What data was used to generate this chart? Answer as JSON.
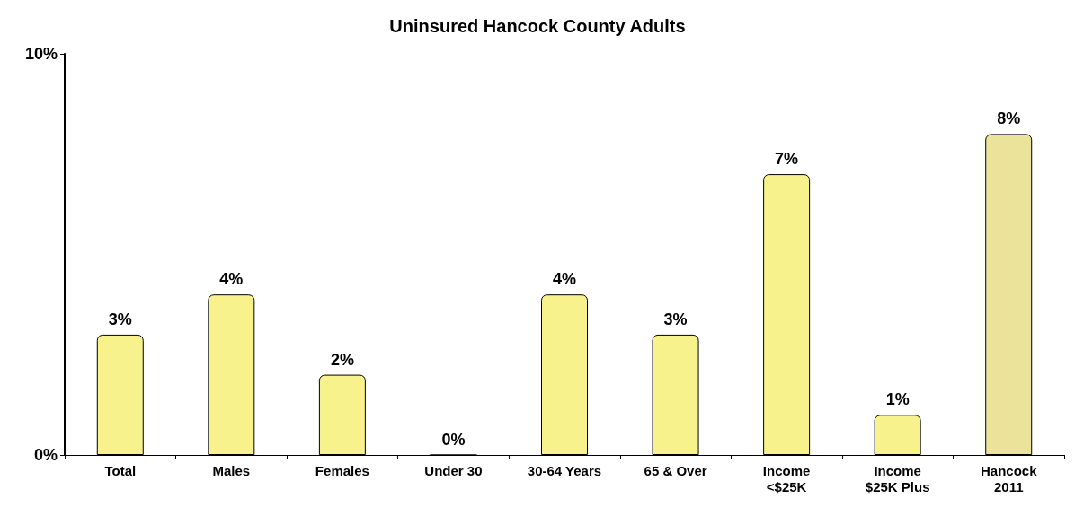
{
  "chart_data": {
    "type": "bar",
    "title": "Uninsured Hancock County Adults",
    "categories": [
      "Total",
      "Males",
      "Females",
      "Under 30",
      "30-64 Years",
      "65 & Over",
      "Income\n<$25K",
      "Income\n$25K Plus",
      "Hancock\n2011"
    ],
    "values": [
      3,
      4,
      2,
      0,
      4,
      3,
      7,
      1,
      8
    ],
    "colors": [
      "#f7f28c",
      "#f7f28c",
      "#f7f28c",
      "#f7f28c",
      "#f7f28c",
      "#f7f28c",
      "#f7f28c",
      "#f7f28c",
      "#ebe39a"
    ],
    "value_labels": [
      "3%",
      "4%",
      "2%",
      "0%",
      "4%",
      "3%",
      "7%",
      "1%",
      "8%"
    ],
    "ylim": [
      0,
      10
    ],
    "yticks": [
      {
        "value": 0,
        "label": "0%"
      },
      {
        "value": 10,
        "label": "10%"
      }
    ],
    "grid": false
  }
}
